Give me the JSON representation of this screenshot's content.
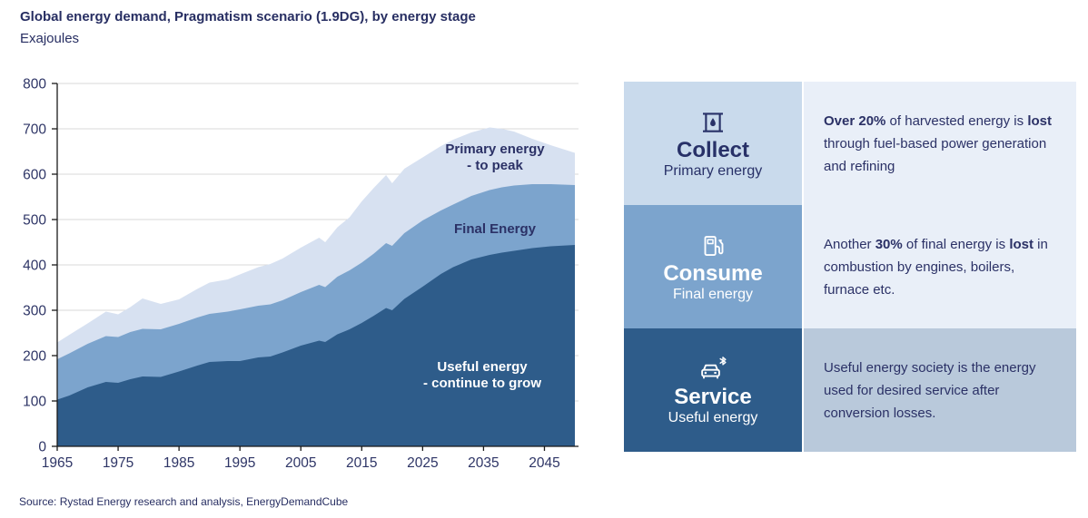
{
  "header": {
    "title": "Global energy demand, Pragmatism scenario (1.9DG), by energy stage",
    "subtitle": "Exajoules"
  },
  "footer": {
    "source": "Source: Rystad Energy research and analysis, EnergyDemandCube"
  },
  "colors": {
    "primary_area": "#D7E1F1",
    "final_area": "#7CA4CD",
    "useful_area": "#2E5C8A",
    "navy_text": "#272E62",
    "axis_label": "#2E3566",
    "gridline": "#D9D9D9",
    "axis_line": "#1a1a1a",
    "collect_tile": "#C9DAEC",
    "consume_tile": "#7CA4CD",
    "service_tile": "#2E5C8A",
    "light_desc_bg": "#E9EFF8",
    "service_desc_bg": "#B9C9DB"
  },
  "chart_data": {
    "type": "area",
    "title": "Global energy demand, Pragmatism scenario (1.9DG), by energy stage",
    "ylabel": "Exajoules",
    "xlabel": "",
    "ylim": [
      0,
      800
    ],
    "xlim": [
      1965,
      2050
    ],
    "grid": true,
    "y_ticks": [
      0,
      100,
      200,
      300,
      400,
      500,
      600,
      700,
      800
    ],
    "x_ticks": [
      1965,
      1975,
      1985,
      1995,
      2005,
      2015,
      2025,
      2035,
      2045
    ],
    "note": "series values are cumulative stack tops in exajoules; painted in listed order",
    "x": [
      1965,
      1967,
      1970,
      1973,
      1975,
      1977,
      1979,
      1982,
      1985,
      1988,
      1990,
      1993,
      1995,
      1998,
      2000,
      2002,
      2005,
      2008,
      2009,
      2011,
      2013,
      2015,
      2017,
      2019,
      2020,
      2022,
      2025,
      2028,
      2030,
      2033,
      2036,
      2038,
      2040,
      2043,
      2046,
      2050
    ],
    "series": [
      {
        "name": "Primary energy",
        "color": "#D7E1F1",
        "values": [
          229,
          246,
          271,
          297,
          291,
          307,
          326,
          314,
          324,
          347,
          361,
          368,
          379,
          395,
          402,
          414,
          438,
          460,
          450,
          483,
          505,
          540,
          570,
          598,
          580,
          612,
          637,
          662,
          676,
          692,
          703,
          700,
          694,
          678,
          664,
          647
        ]
      },
      {
        "name": "Final energy",
        "color": "#7CA4CD",
        "values": [
          192,
          205,
          226,
          243,
          241,
          252,
          259,
          258,
          270,
          284,
          292,
          297,
          302,
          310,
          313,
          322,
          340,
          356,
          351,
          374,
          388,
          405,
          425,
          448,
          442,
          470,
          498,
          520,
          533,
          552,
          565,
          571,
          575,
          578,
          578,
          576
        ]
      },
      {
        "name": "Useful energy",
        "color": "#2E5C8A",
        "values": [
          103,
          112,
          130,
          142,
          140,
          148,
          154,
          153,
          165,
          178,
          186,
          188,
          188,
          196,
          198,
          207,
          222,
          233,
          230,
          247,
          258,
          272,
          288,
          305,
          300,
          325,
          352,
          380,
          395,
          412,
          422,
          427,
          431,
          437,
          441,
          444
        ]
      }
    ],
    "annotations": {
      "primary": {
        "line1": "Primary energy",
        "line2": "- to peak"
      },
      "final": {
        "line1": "Final Energy"
      },
      "useful": {
        "line1": "Useful energy",
        "line2": "- continue to grow"
      }
    }
  },
  "panel": {
    "rows": [
      {
        "stage": "Collect",
        "energy": "Primary energy",
        "icon": "oil-barrel-icon",
        "description": "**Over 20%** of harvested energy is **lost** through fuel-based power generation and refining"
      },
      {
        "stage": "Consume",
        "energy": "Final energy",
        "icon": "fuel-pump-icon",
        "description": "Another **30%** of final energy is **lost** in combustion by engines, boilers, furnace etc."
      },
      {
        "stage": "Service",
        "energy": "Useful energy",
        "icon": "connected-car-icon",
        "description": "Useful energy society is the energy used for desired service after conversion losses."
      }
    ]
  }
}
